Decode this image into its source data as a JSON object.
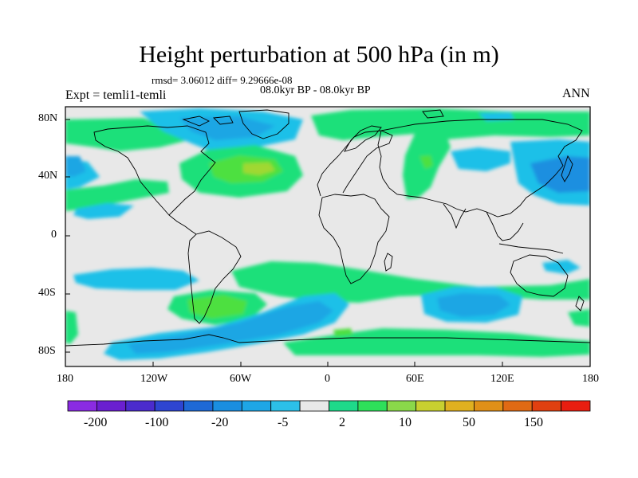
{
  "title": "Height perturbation at 500 hPa (in m)",
  "stats": "rmsd= 3.06012 diff= 9.29666e-08",
  "period": "08.0kyr BP - 08.0kyr BP",
  "expt": "Expt = temli1-temli",
  "season": "ANN",
  "lat_ticks": [
    "80N",
    "40N",
    "0",
    "40S",
    "80S"
  ],
  "lon_ticks": [
    "180",
    "120W",
    "60W",
    "0",
    "60E",
    "120E",
    "180"
  ],
  "colorbar": {
    "labels": [
      "-200",
      "-100",
      "-20",
      "-5",
      "2",
      "10",
      "50",
      "150"
    ],
    "colors": [
      "#8a2be2",
      "#6a1fd0",
      "#4b2bcd",
      "#2e45d1",
      "#1e69d6",
      "#1a8ee0",
      "#1ea6e6",
      "#2cc0e8",
      "#e8e8e8",
      "#1ed98a",
      "#2ee05a",
      "#8ad84a",
      "#c8d030",
      "#e0b020",
      "#e09018",
      "#e06a14",
      "#e04010",
      "#e81e10"
    ]
  },
  "palette": {
    "light_blue": "#1ec0e8",
    "mid_blue": "#1aa6e4",
    "blue": "#1e8fe0",
    "green": "#1ee07a",
    "bright_green": "#4ee040",
    "yellow_green": "#a0d830",
    "background": "#e8e8e8"
  }
}
